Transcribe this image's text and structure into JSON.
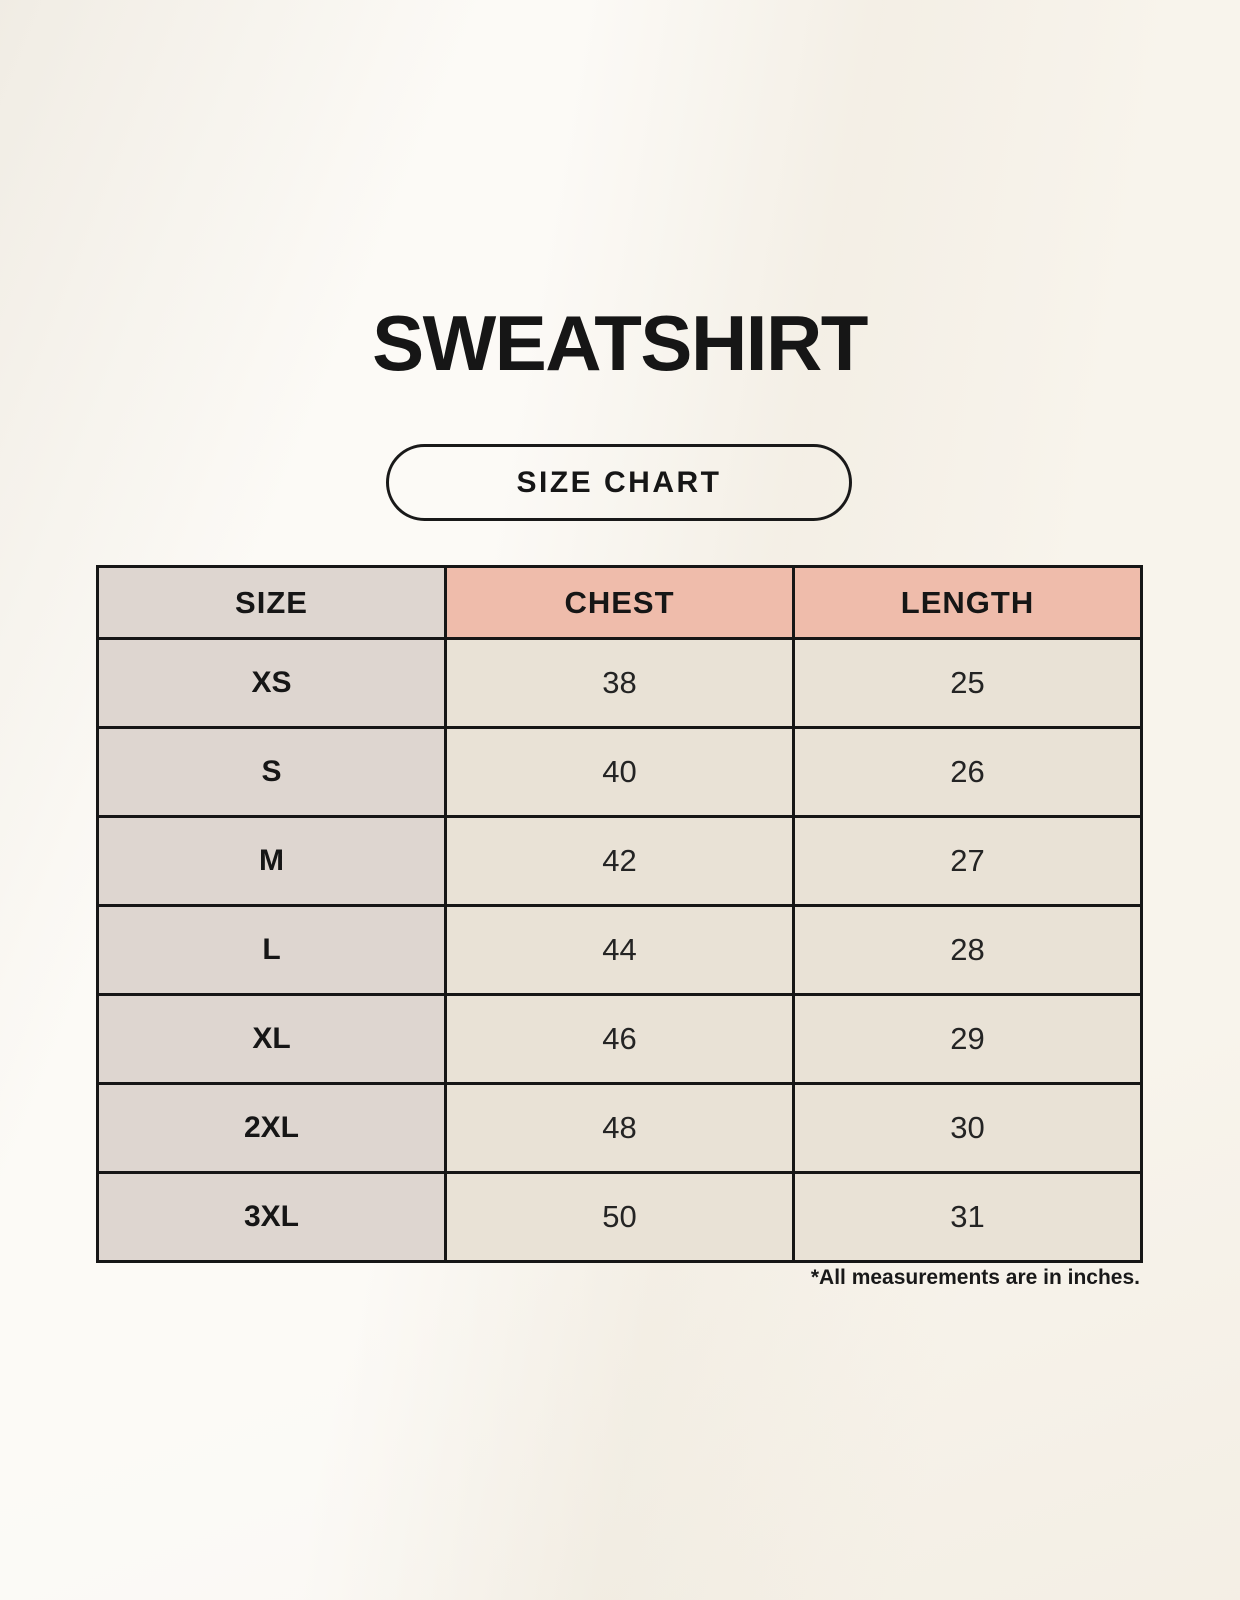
{
  "header": {
    "title": "SWEATSHIRT",
    "badge_label": "SIZE CHART"
  },
  "footnote": "*All measurements are in inches.",
  "colors": {
    "page_background": "#f8f4ec",
    "accent_header": "#efbcab",
    "size_column": "#ded6d0",
    "data_cell": "#e9e2d6",
    "table_border": "#161616",
    "text": "#1c1c1c"
  },
  "chart_data": {
    "type": "table",
    "title": "SWEATSHIRT",
    "subtitle": "SIZE CHART",
    "columns": [
      "SIZE",
      "CHEST",
      "LENGTH"
    ],
    "rows": [
      [
        "XS",
        "38",
        "25"
      ],
      [
        "S",
        "40",
        "26"
      ],
      [
        "M",
        "42",
        "27"
      ],
      [
        "L",
        "44",
        "28"
      ],
      [
        "XL",
        "46",
        "29"
      ],
      [
        "2XL",
        "48",
        "30"
      ],
      [
        "3XL",
        "50",
        "31"
      ]
    ],
    "units_note": "*All measurements are in inches.",
    "legend": "none",
    "grid": "full black cell borders"
  }
}
